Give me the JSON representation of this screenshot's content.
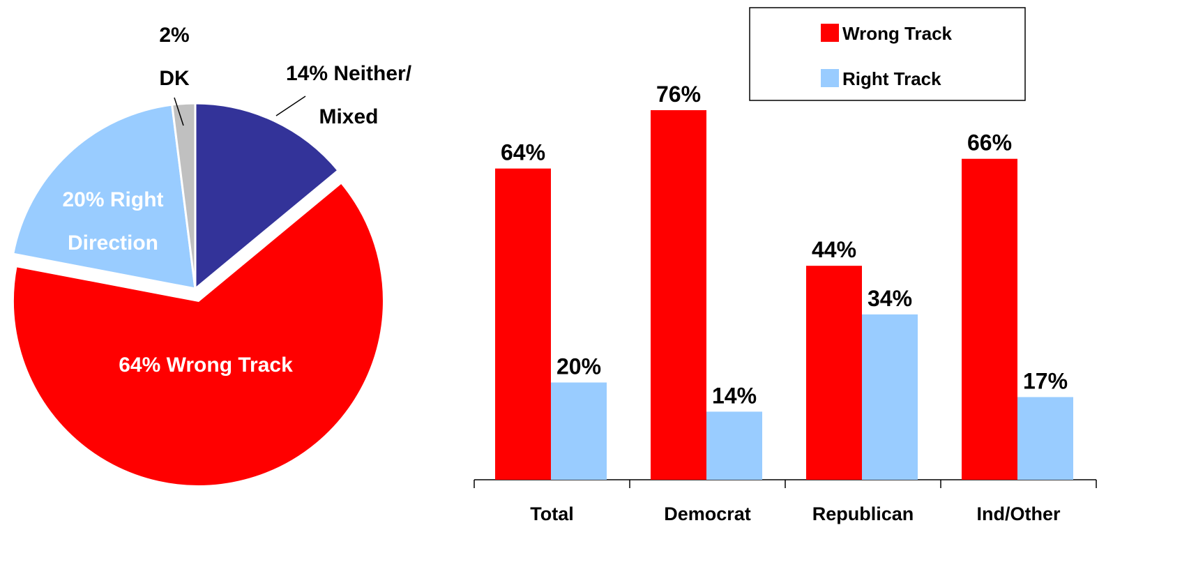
{
  "chart_data": [
    {
      "type": "pie",
      "slices": [
        {
          "name": "Neither/ Mixed",
          "value": 14,
          "color": "#333399",
          "label_lines": [
            "14% Neither/",
            "Mixed"
          ],
          "label_color": "#000000",
          "label_placement": "outside"
        },
        {
          "name": "Wrong Track",
          "value": 64,
          "color": "#ff0000",
          "label_lines": [
            "64% Wrong Track"
          ],
          "label_color": "#ffffff",
          "label_placement": "inside"
        },
        {
          "name": "Right Direction",
          "value": 20,
          "color": "#99ccff",
          "label_lines": [
            "20% Right",
            "Direction"
          ],
          "label_color": "#ffffff",
          "label_placement": "inside"
        },
        {
          "name": "DK",
          "value": 2,
          "color": "#c0c0c0",
          "label_lines": [
            "2%",
            "DK"
          ],
          "label_color": "#000000",
          "label_placement": "outside"
        }
      ],
      "start_angle_deg": 0,
      "direction": "clockwise",
      "exploded_slice": "Wrong Track"
    },
    {
      "type": "bar",
      "categories": [
        "Total",
        "Democrat",
        "Republican",
        "Ind/Other"
      ],
      "series": [
        {
          "name": "Wrong Track",
          "values": [
            64,
            76,
            44,
            66
          ],
          "labels": [
            "64%",
            "76%",
            "44%",
            "66%"
          ],
          "color": "#ff0000"
        },
        {
          "name": "Right Track",
          "values": [
            20,
            14,
            34,
            17
          ],
          "labels": [
            "20%",
            "14%",
            "34%",
            "17%"
          ],
          "color": "#99ccff"
        }
      ],
      "ylim": [
        0,
        76
      ],
      "grid": false,
      "legend_position": "top-right",
      "legend_entries": [
        "Wrong Track",
        "Right Track"
      ]
    }
  ]
}
